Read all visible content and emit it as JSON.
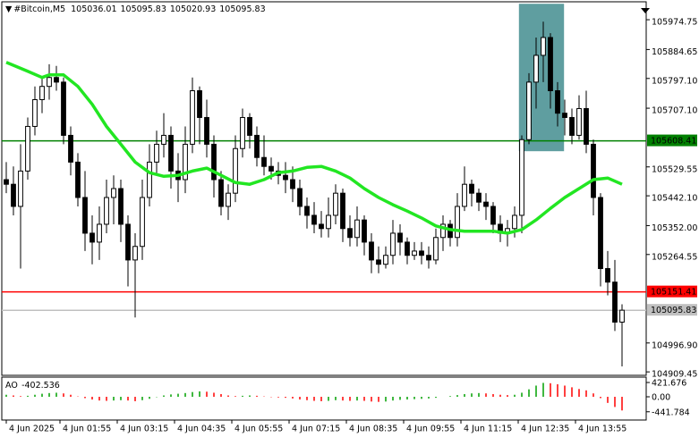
{
  "chart_data": {
    "type": "candlestick",
    "title": "#Bitcoin,M5",
    "header_values": [
      105036.01,
      105095.83,
      105020.93,
      105095.83
    ],
    "open": [
      105491,
      105477,
      105410,
      105517,
      105652,
      105733,
      105773,
      105800,
      105786,
      105625,
      105544,
      105437,
      105329,
      105302,
      105356,
      105437,
      105464,
      105356,
      105248,
      105289,
      105437,
      105544,
      105598,
      105625,
      105517,
      105491,
      105598,
      105760,
      105679,
      105598,
      105491,
      105410,
      105450,
      105585,
      105679,
      105625,
      105558,
      105531,
      105517,
      105504,
      105491,
      105464,
      105410,
      105383,
      105356,
      105343,
      105383,
      105450,
      105343,
      105316,
      105369,
      105302,
      105248,
      105235,
      105262,
      105329,
      105302,
      105262,
      105275,
      105262,
      105248,
      105316,
      105356,
      105316,
      105410,
      105477,
      105450,
      105423,
      105410,
      105356,
      105329,
      105343,
      105383,
      105612,
      105786,
      105867,
      105921,
      105760,
      105692,
      105679,
      105625,
      105706,
      105598,
      105437,
      105222,
      105181,
      105060
    ],
    "high": [
      105544,
      105531,
      105598,
      105679,
      105773,
      105800,
      105840,
      105835,
      105800,
      105652,
      105571,
      105517,
      105383,
      105410,
      105491,
      105504,
      105491,
      105383,
      105329,
      105491,
      105598,
      105639,
      105692,
      105652,
      105571,
      105652,
      105800,
      105773,
      105733,
      105625,
      105517,
      105477,
      105625,
      105706,
      105692,
      105652,
      105625,
      105558,
      105544,
      105544,
      105531,
      105491,
      105437,
      105423,
      105396,
      105437,
      105477,
      105464,
      105383,
      105410,
      105383,
      105329,
      105289,
      105289,
      105369,
      105356,
      105316,
      105302,
      105302,
      105289,
      105343,
      105383,
      105369,
      105450,
      105531,
      105491,
      105464,
      105450,
      105423,
      105383,
      105369,
      105410,
      105625,
      105813,
      105921,
      105969,
      105934,
      105786,
      105733,
      105706,
      105746,
      105760,
      105612,
      105450,
      105275,
      105248,
      105114
    ],
    "low": [
      105450,
      105383,
      105222,
      105491,
      105625,
      105692,
      105733,
      105760,
      105598,
      105504,
      105410,
      105275,
      105235,
      105248,
      105329,
      105356,
      105302,
      105168,
      105074,
      105248,
      105410,
      105504,
      105558,
      105464,
      105423,
      105450,
      105571,
      105598,
      105558,
      105437,
      105383,
      105369,
      105423,
      105558,
      105585,
      105531,
      105504,
      105491,
      105477,
      105450,
      105423,
      105383,
      105343,
      105329,
      105316,
      105316,
      105356,
      105302,
      105289,
      105289,
      105262,
      105208,
      105208,
      105222,
      105235,
      105262,
      105235,
      105248,
      105235,
      105222,
      105235,
      105275,
      105289,
      105289,
      105396,
      105410,
      105396,
      105369,
      105329,
      105302,
      105289,
      105316,
      105329,
      105598,
      105706,
      105786,
      105706,
      105652,
      105625,
      105598,
      105612,
      105571,
      105383,
      105168,
      105141,
      105033,
      104926
    ],
    "close": [
      105477,
      105410,
      105517,
      105652,
      105733,
      105773,
      105800,
      105786,
      105625,
      105544,
      105437,
      105329,
      105302,
      105356,
      105437,
      105464,
      105356,
      105248,
      105289,
      105437,
      105544,
      105598,
      105625,
      105517,
      105491,
      105598,
      105760,
      105679,
      105598,
      105491,
      105410,
      105450,
      105585,
      105679,
      105625,
      105558,
      105531,
      105517,
      105504,
      105491,
      105464,
      105410,
      105383,
      105356,
      105343,
      105383,
      105450,
      105343,
      105316,
      105369,
      105302,
      105248,
      105235,
      105262,
      105329,
      105302,
      105262,
      105275,
      105262,
      105248,
      105316,
      105356,
      105316,
      105410,
      105477,
      105450,
      105423,
      105410,
      105356,
      105329,
      105343,
      105383,
      105612,
      105786,
      105867,
      105921,
      105760,
      105692,
      105679,
      105625,
      105706,
      105598,
      105437,
      105222,
      105181,
      105060,
      105096
    ],
    "xlim": [
      -0.625,
      89.375
    ],
    "xticks": [
      {
        "value": 0,
        "label": "4 Jun 2025"
      },
      {
        "value": 7.5,
        "label": "4 Jun 01:55"
      },
      {
        "value": 15.5,
        "label": "4 Jun 03:15"
      },
      {
        "value": 23.5,
        "label": "4 Jun 04:35"
      },
      {
        "value": 31.5,
        "label": "4 Jun 05:55"
      },
      {
        "value": 39.5,
        "label": "4 Jun 07:15"
      },
      {
        "value": 47.5,
        "label": "4 Jun 08:35"
      },
      {
        "value": 55.5,
        "label": "4 Jun 09:55"
      },
      {
        "value": 63.5,
        "label": "4 Jun 11:15"
      },
      {
        "value": 71.5,
        "label": "4 Jun 12:35"
      },
      {
        "value": 79.5,
        "label": "4 Jun 13:55"
      }
    ],
    "ylim": [
      104899,
      106029
    ],
    "yticks": [
      105974.75,
      105884.65,
      {
        "value": 105797.1,
        "label": "105797.10"
      },
      {
        "value": 105707.1,
        "label": "105707.10"
      },
      105529.55,
      {
        "value": 105442.1,
        "label": "105442.10"
      },
      {
        "value": 105352,
        "label": "105352.00"
      },
      105264.55,
      {
        "value": 104996.9,
        "label": "104996.90"
      },
      104909.45
    ],
    "bull_color": "#ffffff",
    "bear_color": "#000000",
    "moving_average": {
      "color": "#22e622",
      "x": [
        0,
        3,
        5,
        6,
        8,
        10,
        12,
        14,
        16,
        18,
        20,
        22,
        24,
        26,
        28,
        30,
        32,
        34,
        36,
        38,
        40,
        42,
        44,
        46,
        48,
        50,
        52,
        54,
        56,
        58,
        60,
        62,
        64,
        66,
        68,
        70,
        72,
        74,
        76,
        78,
        80,
        82,
        84,
        86
      ],
      "values": [
        105846,
        105819,
        105800,
        105808,
        105808,
        105773,
        105719,
        105652,
        105598,
        105544,
        105512,
        105501,
        105504,
        105517,
        105526,
        105504,
        105482,
        105477,
        105491,
        105512,
        105517,
        105528,
        105531,
        105517,
        105496,
        105464,
        105437,
        105415,
        105396,
        105375,
        105351,
        105340,
        105335,
        105335,
        105335,
        105329,
        105340,
        105369,
        105404,
        105437,
        105464,
        105491,
        105496,
        105477
      ]
    },
    "levels": [
      {
        "value": 105608.41,
        "color": "#008000",
        "text_color": "#ffffff"
      },
      {
        "value": 105151.41,
        "color": "#ff0000",
        "text_color": "#ffffff"
      },
      {
        "value": 105095.83,
        "color": "#c0c0c0",
        "text_color": "#000000"
      }
    ],
    "zone": {
      "color": "#5f9ea0",
      "xlim": [
        71.6,
        77.9
      ],
      "ylim": [
        105577,
        106023
      ]
    },
    "oscillator": {
      "type": "bar",
      "name": "AO",
      "current": -402.536,
      "up_color": "#00a000",
      "down_color": "#ff0000",
      "values": [
        60,
        40,
        20,
        30,
        60,
        90,
        110,
        120,
        100,
        60,
        10,
        -40,
        -80,
        -110,
        -120,
        -110,
        -100,
        -110,
        -130,
        -100,
        -60,
        -10,
        40,
        70,
        90,
        110,
        140,
        160,
        150,
        120,
        80,
        40,
        20,
        30,
        40,
        30,
        10,
        -10,
        -20,
        -30,
        -50,
        -80,
        -100,
        -120,
        -130,
        -120,
        -100,
        -110,
        -120,
        -110,
        -120,
        -140,
        -150,
        -140,
        -110,
        -90,
        -80,
        -70,
        -60,
        -50,
        -30,
        0,
        20,
        50,
        80,
        100,
        110,
        100,
        80,
        60,
        50,
        60,
        120,
        220,
        330,
        410,
        400,
        370,
        330,
        280,
        230,
        190,
        100,
        -40,
        -180,
        -300,
        -402.536
      ],
      "ylim": [
        -685,
        580
      ],
      "yticks": [
        421.676,
        {
          "value": 0,
          "label": "0.00"
        },
        -441.784
      ]
    }
  }
}
